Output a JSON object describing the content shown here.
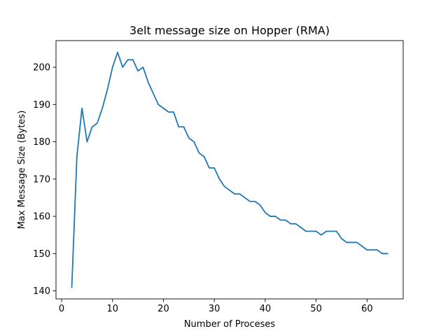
{
  "chart_data": {
    "type": "line",
    "title": "3elt message size on Hopper (RMA)",
    "xlabel": "Number of Proceses",
    "ylabel": "Max Message Size (Bytes)",
    "xlim": [
      -1.1,
      67.1
    ],
    "ylim": [
      137.85,
      207.15
    ],
    "xticks": [
      0,
      10,
      20,
      30,
      40,
      50,
      60
    ],
    "yticks": [
      140,
      150,
      160,
      170,
      180,
      190,
      200
    ],
    "grid": false,
    "legend": "none",
    "series": [
      {
        "color": "#1f77b4",
        "x": [
          2,
          3,
          4,
          5,
          6,
          7,
          8,
          9,
          10,
          11,
          12,
          13,
          14,
          15,
          16,
          17,
          18,
          19,
          20,
          21,
          22,
          23,
          24,
          25,
          26,
          27,
          28,
          29,
          30,
          31,
          32,
          33,
          34,
          35,
          36,
          37,
          38,
          39,
          40,
          41,
          42,
          43,
          44,
          45,
          46,
          47,
          48,
          49,
          50,
          51,
          52,
          53,
          54,
          55,
          56,
          57,
          58,
          59,
          60,
          61,
          62,
          63,
          64
        ],
        "y": [
          141,
          176,
          189,
          180,
          184,
          185,
          189,
          194,
          200,
          204,
          200,
          202,
          202,
          199,
          200,
          196,
          193,
          190,
          189,
          188,
          188,
          184,
          184,
          181,
          180,
          177,
          176,
          173,
          173,
          170,
          168,
          167,
          166,
          166,
          165,
          164,
          164,
          163,
          161,
          160,
          160,
          159,
          159,
          158,
          158,
          157,
          156,
          156,
          156,
          155,
          156,
          156,
          156,
          154,
          153,
          153,
          153,
          152,
          151,
          151,
          151,
          150,
          150
        ]
      }
    ]
  }
}
